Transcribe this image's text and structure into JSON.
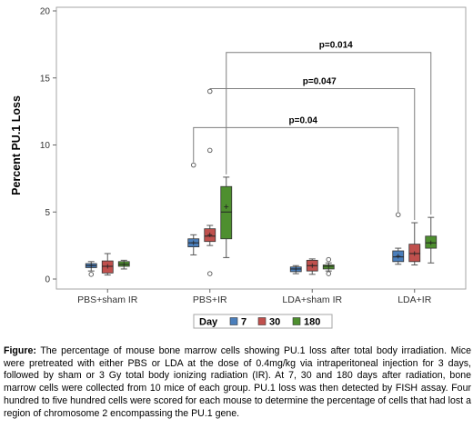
{
  "chart_data": {
    "type": "box",
    "ylabel": "Percent PU.1 Loss",
    "ylim": [
      0,
      20
    ],
    "yticks": [
      "0",
      "5",
      "10",
      "15",
      "20"
    ],
    "categories": [
      "PBS+sham IR",
      "PBS+IR",
      "LDA+sham IR",
      "LDA+IR"
    ],
    "legend": {
      "title": "Day",
      "position": "bottom"
    },
    "series": [
      {
        "name": "7",
        "color": "#4a7ebb",
        "boxes": [
          {
            "q1": 0.85,
            "median": 1.0,
            "q3": 1.15,
            "whisker_low": 0.6,
            "whisker_high": 1.3,
            "mean": 1.0,
            "outliers": [
              0.35
            ]
          },
          {
            "q1": 2.4,
            "median": 2.7,
            "q3": 3.0,
            "whisker_low": 1.8,
            "whisker_high": 3.3,
            "mean": 2.7,
            "outliers": [
              8.5
            ]
          },
          {
            "q1": 0.55,
            "median": 0.75,
            "q3": 0.9,
            "whisker_low": 0.4,
            "whisker_high": 1.0,
            "mean": 0.75,
            "outliers": []
          },
          {
            "q1": 1.3,
            "median": 1.65,
            "q3": 2.1,
            "whisker_low": 1.1,
            "whisker_high": 2.3,
            "mean": 1.7,
            "outliers": [
              4.8
            ]
          }
        ]
      },
      {
        "name": "30",
        "color": "#c0504d",
        "boxes": [
          {
            "q1": 0.45,
            "median": 0.95,
            "q3": 1.35,
            "whisker_low": 0.3,
            "whisker_high": 1.9,
            "mean": 0.95,
            "outliers": []
          },
          {
            "q1": 2.8,
            "median": 3.2,
            "q3": 3.75,
            "whisker_low": 2.5,
            "whisker_high": 4.0,
            "mean": 3.3,
            "outliers": [
              0.4,
              9.6,
              14.0
            ]
          },
          {
            "q1": 0.6,
            "median": 1.0,
            "q3": 1.4,
            "whisker_low": 0.35,
            "whisker_high": 1.5,
            "mean": 1.0,
            "outliers": []
          },
          {
            "q1": 1.3,
            "median": 1.9,
            "q3": 2.6,
            "whisker_low": 1.05,
            "whisker_high": 4.2,
            "mean": 1.9,
            "outliers": []
          }
        ]
      },
      {
        "name": "180",
        "color": "#4e8f2f",
        "boxes": [
          {
            "q1": 0.95,
            "median": 1.1,
            "q3": 1.3,
            "whisker_low": 0.75,
            "whisker_high": 1.4,
            "mean": 1.1,
            "outliers": []
          },
          {
            "q1": 3.0,
            "median": 5.0,
            "q3": 6.9,
            "whisker_low": 1.6,
            "whisker_high": 7.6,
            "mean": 5.4,
            "outliers": []
          },
          {
            "q1": 0.75,
            "median": 0.95,
            "q3": 1.05,
            "whisker_low": 0.6,
            "whisker_high": 1.2,
            "mean": 0.95,
            "outliers": [
              0.4,
              1.45
            ]
          },
          {
            "q1": 2.3,
            "median": 2.7,
            "q3": 3.2,
            "whisker_low": 1.2,
            "whisker_high": 4.6,
            "mean": 2.7,
            "outliers": []
          }
        ]
      }
    ],
    "comparisons": [
      {
        "label": "p=0.014",
        "from_category": "PBS+IR",
        "from_series": "180",
        "to_category": "LDA+IR",
        "to_series": "180",
        "y": 16.9
      },
      {
        "label": "p=0.047",
        "from_category": "PBS+IR",
        "from_series": "30",
        "to_category": "LDA+IR",
        "to_series": "30",
        "y": 14.2
      },
      {
        "label": "p=0.04",
        "from_category": "PBS+IR",
        "from_series": "7",
        "to_category": "LDA+IR",
        "to_series": "7",
        "y": 11.3
      }
    ]
  },
  "caption": {
    "label": "Figure:",
    "text": " The percentage of mouse bone marrow cells showing PU.1 loss after total body irradiation. Mice were pretreated with either PBS or LDA at the dose of 0.4mg/kg via intraperitoneal injection for 3 days, followed by sham or 3 Gy total body ionizing radiation (IR). At 7, 30 and 180 days after radiation, bone marrow cells were collected from 10 mice of each group. PU.1 loss was then detected by FISH assay. Four hundred to five hundred cells were scored for each mouse to determine the percentage of cells that had lost a region of chromosome 2 encompassing the PU.1 gene."
  }
}
